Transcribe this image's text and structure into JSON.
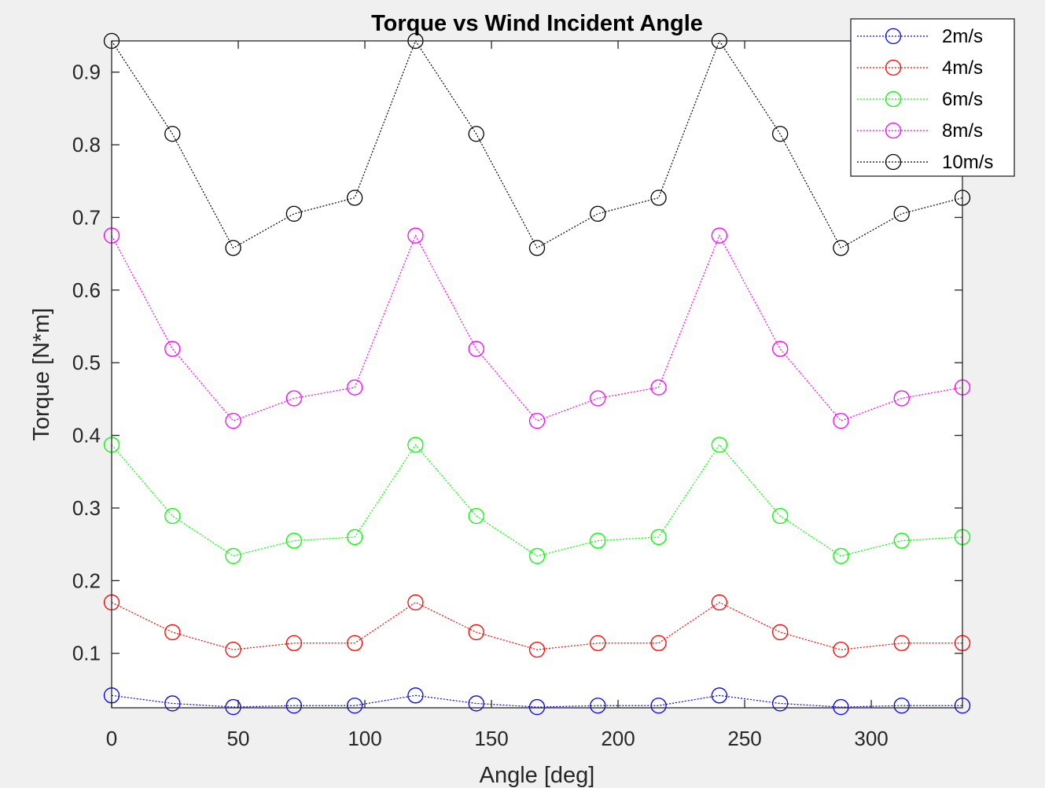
{
  "chart_data": {
    "type": "line",
    "title": "Torque vs Wind Incident Angle",
    "xlabel": "Angle [deg]",
    "ylabel": "Torque [N*m]",
    "xlim": [
      0,
      336
    ],
    "ylim": [
      0.025,
      0.943
    ],
    "xticks": [
      0,
      50,
      100,
      150,
      200,
      250,
      300
    ],
    "yticks": [
      0.1,
      0.2,
      0.3,
      0.4,
      0.5,
      0.6,
      0.7,
      0.8,
      0.9
    ],
    "grid": false,
    "legend_position": "top-right",
    "x": [
      0,
      24,
      48,
      72,
      96,
      120,
      144,
      168,
      192,
      216,
      240,
      264,
      288,
      312,
      336
    ],
    "series": [
      {
        "name": "2m/s",
        "color": "#0000ff",
        "values": [
          0.042,
          0.031,
          0.026,
          0.028,
          0.028,
          0.042,
          0.031,
          0.026,
          0.028,
          0.028,
          0.042,
          0.031,
          0.026,
          0.028,
          0.028
        ]
      },
      {
        "name": "4m/s",
        "color": "#ff0000",
        "values": [
          0.17,
          0.129,
          0.105,
          0.114,
          0.114,
          0.17,
          0.129,
          0.105,
          0.114,
          0.114,
          0.17,
          0.129,
          0.105,
          0.114,
          0.114
        ]
      },
      {
        "name": "6m/s",
        "color": "#00ff00",
        "values": [
          0.387,
          0.289,
          0.234,
          0.255,
          0.26,
          0.387,
          0.289,
          0.234,
          0.255,
          0.26,
          0.387,
          0.289,
          0.234,
          0.255,
          0.26
        ]
      },
      {
        "name": "8m/s",
        "color": "#ff00ff",
        "values": [
          0.675,
          0.519,
          0.42,
          0.451,
          0.466,
          0.675,
          0.519,
          0.42,
          0.451,
          0.466,
          0.675,
          0.519,
          0.42,
          0.451,
          0.466
        ]
      },
      {
        "name": "10m/s",
        "color": "#000000",
        "values": [
          0.943,
          0.815,
          0.658,
          0.705,
          0.727,
          0.943,
          0.815,
          0.658,
          0.705,
          0.727,
          0.943,
          0.815,
          0.658,
          0.705,
          0.727
        ]
      }
    ]
  }
}
